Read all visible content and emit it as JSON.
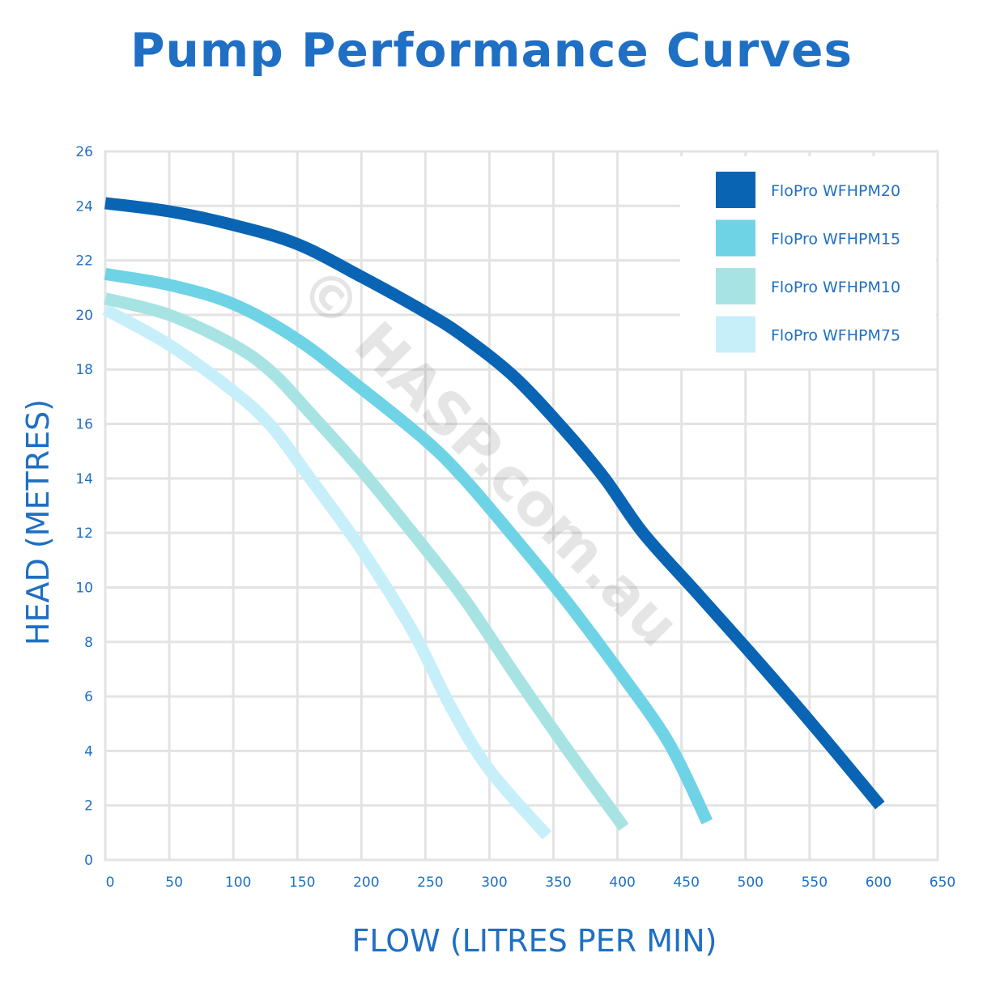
{
  "chart_data": {
    "type": "line",
    "title": "Pump Performance Curves",
    "xlabel": "FLOW (LITRES PER MIN)",
    "ylabel": "HEAD (METRES)",
    "xlim": [
      0,
      650
    ],
    "ylim": [
      0,
      26
    ],
    "x_ticks": [
      0,
      50,
      100,
      150,
      200,
      250,
      300,
      350,
      400,
      450,
      500,
      550,
      600,
      650
    ],
    "y_ticks": [
      0,
      2,
      4,
      6,
      8,
      10,
      12,
      14,
      16,
      18,
      20,
      22,
      24,
      26
    ],
    "grid": true,
    "legend_position": "top-right",
    "watermark": "© HASP.com.au",
    "series": [
      {
        "name": "FloPro WFHPM20",
        "color": "#0a64b4",
        "points": [
          [
            0,
            24.1
          ],
          [
            50,
            23.8
          ],
          [
            100,
            23.3
          ],
          [
            150,
            22.6
          ],
          [
            200,
            21.4
          ],
          [
            250,
            20.1
          ],
          [
            280,
            19.2
          ],
          [
            320,
            17.7
          ],
          [
            360,
            15.7
          ],
          [
            390,
            14.0
          ],
          [
            420,
            12.0
          ],
          [
            460,
            9.9
          ],
          [
            500,
            7.8
          ],
          [
            550,
            5.1
          ],
          [
            605,
            2.0
          ]
        ]
      },
      {
        "name": "FloPro WFHPM15",
        "color": "#6fd3e6",
        "points": [
          [
            0,
            21.5
          ],
          [
            50,
            21.1
          ],
          [
            100,
            20.4
          ],
          [
            150,
            19.1
          ],
          [
            200,
            17.3
          ],
          [
            250,
            15.4
          ],
          [
            280,
            14.0
          ],
          [
            320,
            11.8
          ],
          [
            360,
            9.5
          ],
          [
            400,
            7.0
          ],
          [
            440,
            4.3
          ],
          [
            470,
            1.4
          ]
        ]
      },
      {
        "name": "FloPro WFHPM10",
        "color": "#a8e3e3",
        "points": [
          [
            0,
            20.6
          ],
          [
            50,
            20.0
          ],
          [
            100,
            18.9
          ],
          [
            130,
            17.9
          ],
          [
            160,
            16.4
          ],
          [
            200,
            14.3
          ],
          [
            240,
            12.0
          ],
          [
            280,
            9.6
          ],
          [
            320,
            6.8
          ],
          [
            360,
            4.1
          ],
          [
            405,
            1.2
          ]
        ]
      },
      {
        "name": "FloPro WFHPM75",
        "color": "#c7effa",
        "points": [
          [
            0,
            20.2
          ],
          [
            50,
            18.9
          ],
          [
            100,
            17.2
          ],
          [
            130,
            15.9
          ],
          [
            160,
            14.0
          ],
          [
            200,
            11.4
          ],
          [
            240,
            8.4
          ],
          [
            270,
            5.6
          ],
          [
            300,
            3.3
          ],
          [
            345,
            0.9
          ]
        ]
      }
    ]
  }
}
